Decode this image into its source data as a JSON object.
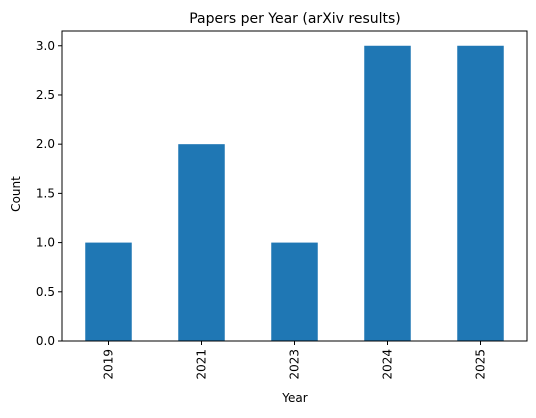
{
  "chart_data": {
    "type": "bar",
    "title": "Papers per Year (arXiv results)",
    "xlabel": "Year",
    "ylabel": "Count",
    "categories": [
      "2019",
      "2021",
      "2023",
      "2024",
      "2025"
    ],
    "values": [
      1,
      2,
      1,
      3,
      3
    ],
    "ylim": [
      0,
      3.15
    ],
    "yticks": [
      0.0,
      0.5,
      1.0,
      1.5,
      2.0,
      2.5,
      3.0
    ],
    "ytick_labels": [
      "0.0",
      "0.5",
      "1.0",
      "1.5",
      "2.0",
      "2.5",
      "3.0"
    ],
    "grid": false,
    "legend": "none",
    "bar_color": "#1f77b4",
    "axis_color": "#000000"
  }
}
